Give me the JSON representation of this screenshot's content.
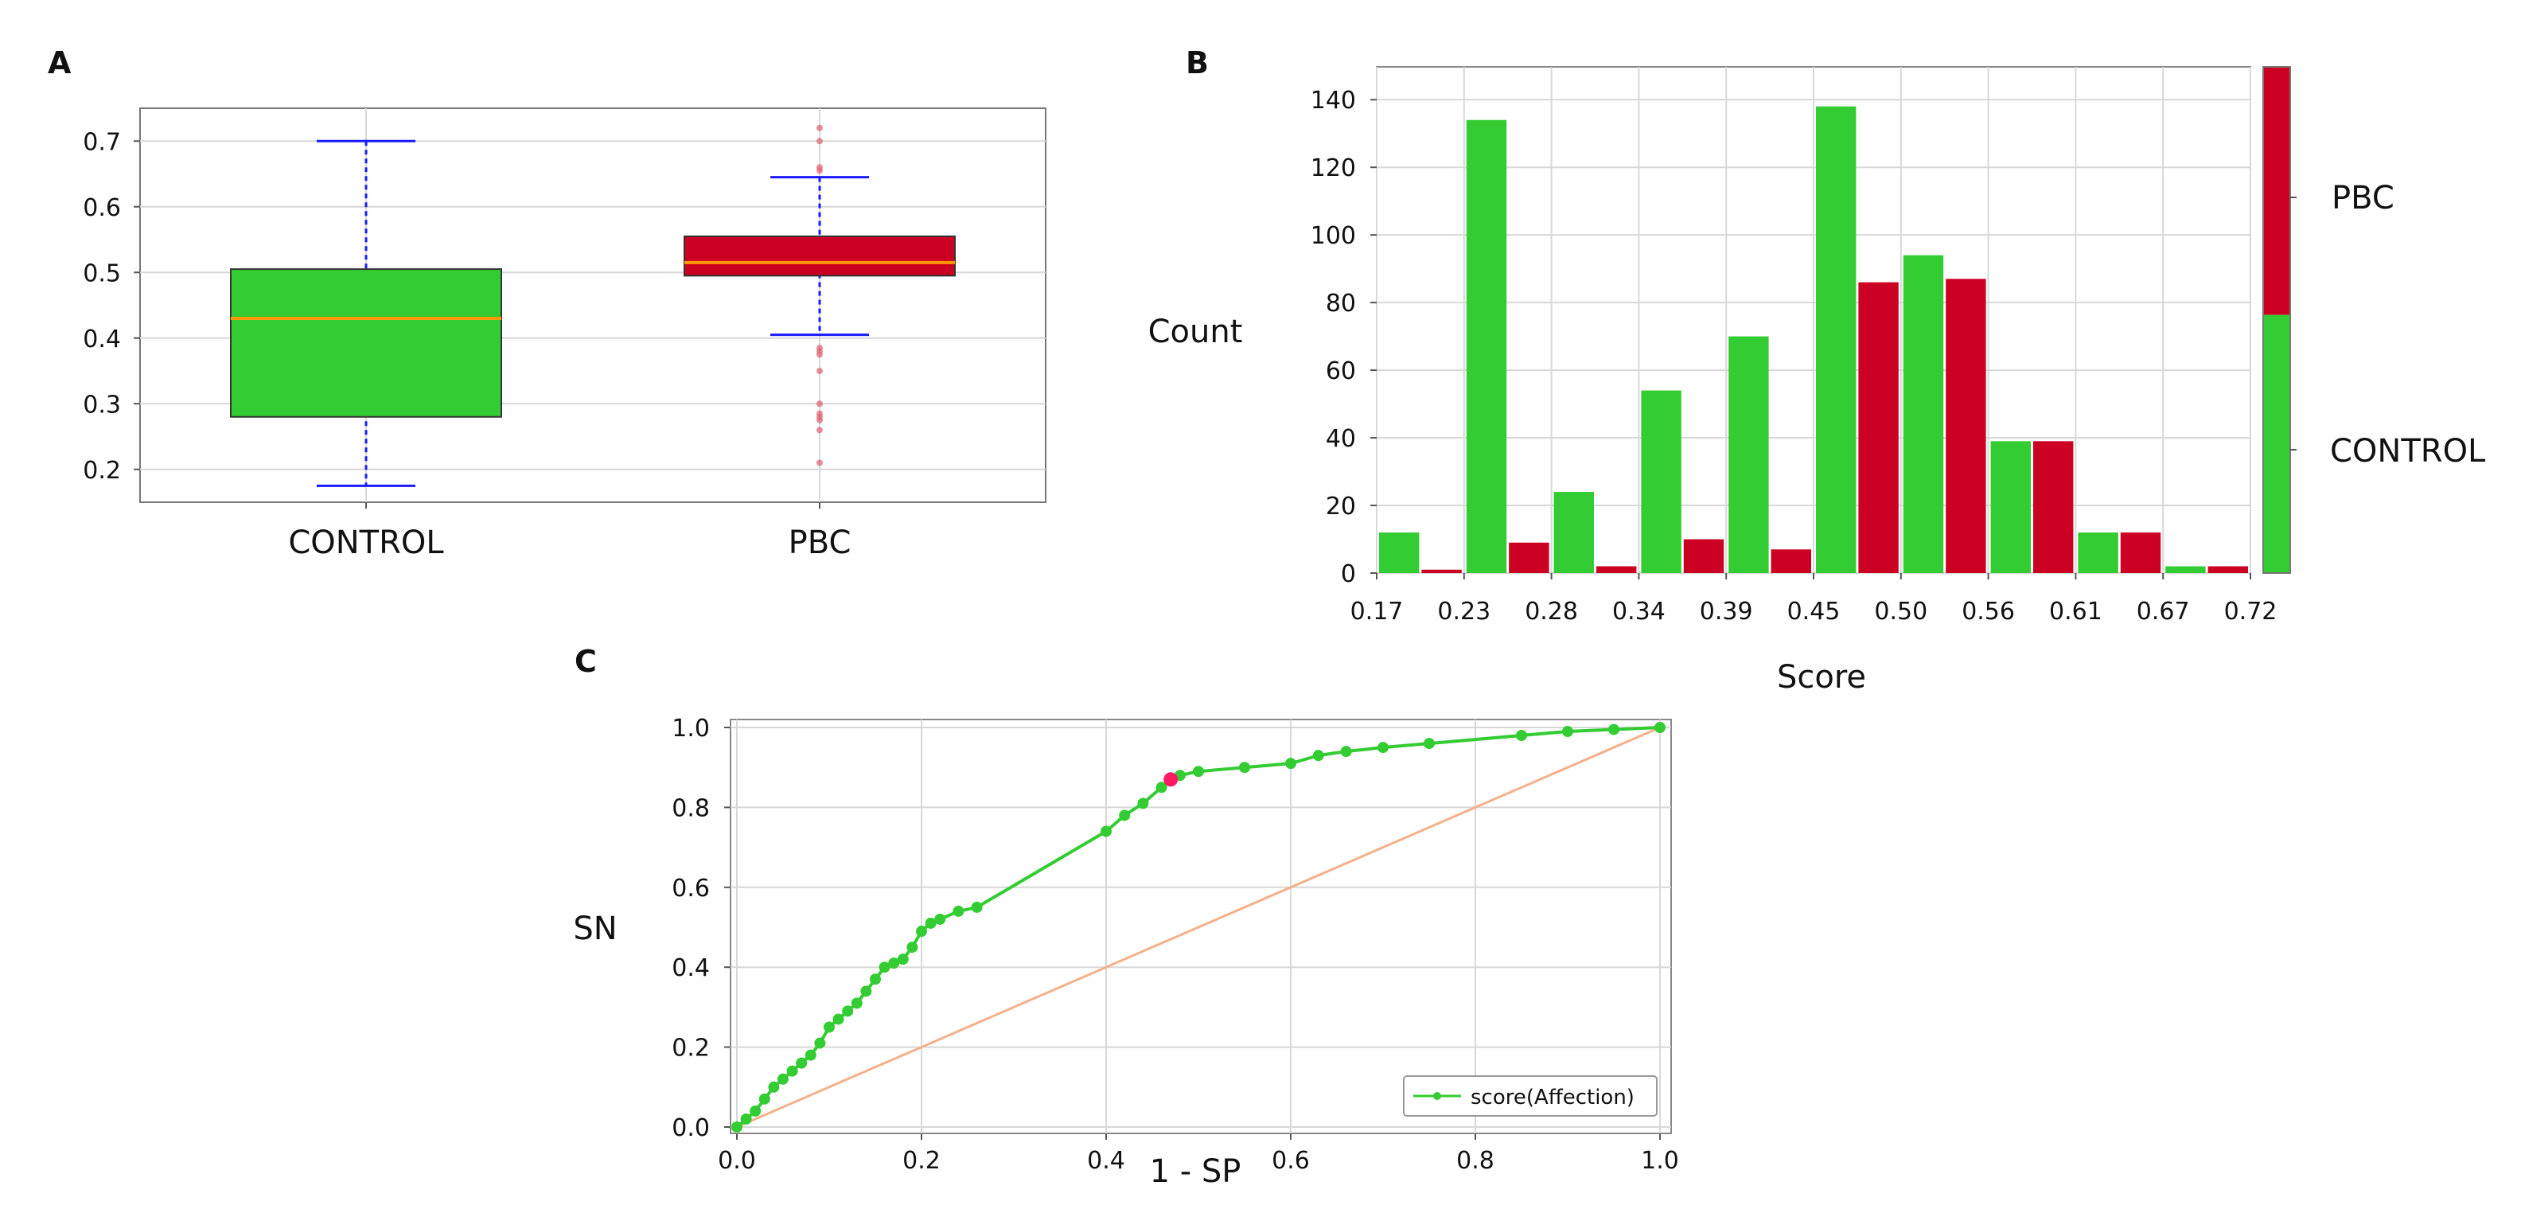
{
  "colors": {
    "control": "#33cc33",
    "pbc": "#cc0022",
    "median": "#ff9900",
    "whisker": "#1a1aff",
    "grid": "#d8d8d8",
    "axis": "#888888",
    "roc_line": "#33cc33",
    "diagonal": "#f5b08a",
    "optimal_point": "#ff1a66"
  },
  "panel_a": {
    "label": "A",
    "chart_data": {
      "type": "box",
      "categories": [
        "CONTROL",
        "PBC"
      ],
      "yticks": [
        "0.2",
        "0.3",
        "0.4",
        "0.5",
        "0.6",
        "0.7"
      ],
      "ylim": [
        0.15,
        0.75
      ],
      "boxes": [
        {
          "name": "CONTROL",
          "min": 0.175,
          "q1": 0.28,
          "median": 0.43,
          "q3": 0.505,
          "max": 0.7,
          "outliers": []
        },
        {
          "name": "PBC",
          "min": 0.405,
          "q1": 0.495,
          "median": 0.515,
          "q3": 0.555,
          "max": 0.645,
          "outliers": [
            0.72,
            0.7,
            0.66,
            0.655,
            0.385,
            0.38,
            0.375,
            0.35,
            0.3,
            0.285,
            0.28,
            0.275,
            0.26,
            0.21
          ]
        }
      ]
    }
  },
  "panel_b": {
    "label": "B",
    "chart_data": {
      "type": "bar",
      "xlabel": "Score",
      "ylabel": "Count",
      "xticks": [
        "0.17",
        "0.23",
        "0.28",
        "0.34",
        "0.39",
        "0.45",
        "0.50",
        "0.56",
        "0.61",
        "0.67",
        "0.72"
      ],
      "yticks": [
        "0",
        "20",
        "40",
        "60",
        "80",
        "100",
        "120",
        "140"
      ],
      "ylim": [
        0,
        145
      ],
      "series": [
        {
          "name": "CONTROL",
          "values": [
            12,
            134,
            24,
            54,
            70,
            138,
            94,
            39,
            12,
            2
          ]
        },
        {
          "name": "PBC",
          "values": [
            1,
            9,
            2,
            10,
            7,
            86,
            87,
            39,
            12,
            2
          ]
        }
      ],
      "legend": [
        "PBC",
        "CONTROL"
      ],
      "legend_split_fraction": 0.51
    }
  },
  "panel_c": {
    "label": "C",
    "chart_data": {
      "type": "line",
      "xlabel": "1 - SP",
      "ylabel": "SN",
      "xticks": [
        "0.0",
        "0.2",
        "0.4",
        "0.6",
        "0.8",
        "1.0"
      ],
      "yticks": [
        "0.0",
        "0.2",
        "0.4",
        "0.6",
        "0.8",
        "1.0"
      ],
      "xlim": [
        0,
        1
      ],
      "ylim": [
        0,
        1
      ],
      "series": [
        {
          "name": "score(Affection)",
          "x": [
            0.0,
            0.01,
            0.02,
            0.03,
            0.04,
            0.05,
            0.06,
            0.07,
            0.08,
            0.09,
            0.1,
            0.11,
            0.12,
            0.13,
            0.14,
            0.15,
            0.16,
            0.17,
            0.18,
            0.19,
            0.2,
            0.21,
            0.22,
            0.24,
            0.26,
            0.4,
            0.42,
            0.44,
            0.46,
            0.47,
            0.48,
            0.5,
            0.55,
            0.6,
            0.63,
            0.66,
            0.7,
            0.75,
            0.85,
            0.9,
            0.95,
            1.0
          ],
          "y": [
            0.0,
            0.02,
            0.04,
            0.07,
            0.1,
            0.12,
            0.14,
            0.16,
            0.18,
            0.21,
            0.25,
            0.27,
            0.29,
            0.31,
            0.34,
            0.37,
            0.4,
            0.41,
            0.42,
            0.45,
            0.49,
            0.51,
            0.52,
            0.54,
            0.55,
            0.74,
            0.78,
            0.81,
            0.85,
            0.87,
            0.88,
            0.89,
            0.9,
            0.91,
            0.93,
            0.94,
            0.95,
            0.96,
            0.98,
            0.99,
            0.995,
            1.0
          ]
        }
      ],
      "reference_line": {
        "x": [
          0,
          1
        ],
        "y": [
          0,
          1
        ]
      },
      "optimal_point": {
        "x": 0.47,
        "y": 0.87
      },
      "legend": "score(Affection)"
    }
  }
}
